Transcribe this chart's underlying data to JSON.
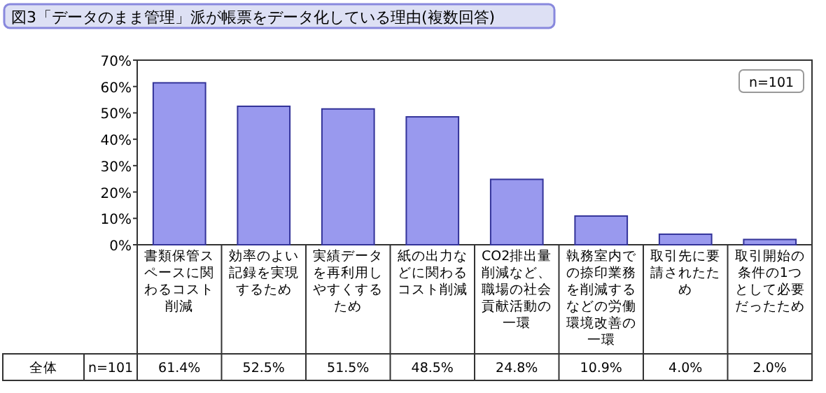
{
  "chart_data": {
    "type": "bar",
    "title": "図3「データのまま管理」派が帳票をデータ化している理由(複数回答)",
    "categories": [
      "書類保管スペースに関わるコスト削減",
      "効率のよい記録を実現するため",
      "実績データを再利用しやすくするため",
      "紙の出力などに関わるコスト削減",
      "CO2排出量削減など、職場の社会貢献活動の一環",
      "執務室内での捺印業務を削減するなどの労働環境改善の一環",
      "取引先に要請されたため",
      "取引開始の条件の1つとして必要だったため"
    ],
    "series": [
      {
        "color": "#9999ee",
        "values": [
          61.4,
          52.5,
          51.5,
          48.5,
          24.8,
          10.9,
          4.0,
          2.0
        ],
        "value_labels": [
          "61.4%",
          "52.5%",
          "51.5%",
          "48.5%",
          "24.8%",
          "10.9%",
          "4.0%",
          "2.0%"
        ]
      }
    ],
    "ylim": [
      0,
      70
    ],
    "yticks": [
      {
        "value": 0,
        "label": "0%"
      },
      {
        "value": 10,
        "label": "10%"
      },
      {
        "value": 20,
        "label": "20%"
      },
      {
        "value": 30,
        "label": "30%"
      },
      {
        "value": 40,
        "label": "40%"
      },
      {
        "value": 50,
        "label": "50%"
      },
      {
        "value": 60,
        "label": "60%"
      },
      {
        "value": 70,
        "label": "70%"
      }
    ],
    "grid": false,
    "annotations": [
      "n=101",
      "全体",
      "n=101"
    ]
  }
}
